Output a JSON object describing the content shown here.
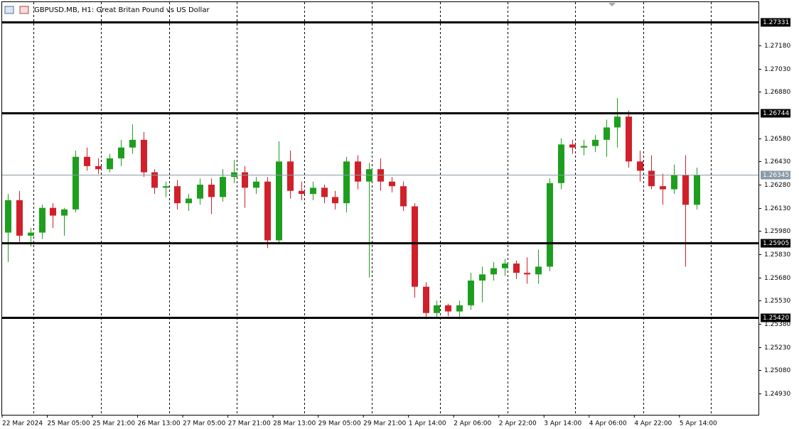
{
  "chart_data": {
    "type": "candlestick",
    "title": "GBPUSD.MB, H1:  Great Britan Pound vs US Dollar",
    "categories": [
      "22 Mar 2024",
      null,
      null,
      null,
      "25 Mar 05:00",
      null,
      null,
      null,
      "25 Mar 21:00",
      null,
      null,
      null,
      "26 Mar 13:00",
      null,
      null,
      null,
      "27 Mar 05:00",
      null,
      null,
      null,
      "27 Mar 21:00",
      null,
      null,
      null,
      "28 Mar 13:00",
      null,
      null,
      null,
      "29 Mar 05:00",
      null,
      null,
      null,
      "29 Mar 21:00",
      null,
      null,
      null,
      "1 Apr 14:00",
      null,
      null,
      null,
      "2 Apr 06:00",
      null,
      null,
      null,
      "2 Apr 22:00",
      null,
      null,
      null,
      "3 Apr 14:00",
      null,
      null,
      null,
      "4 Apr 06:00",
      null,
      null,
      null,
      "4 Apr 22:00",
      null,
      null,
      null,
      "5 Apr 14:00",
      null
    ],
    "open": [
      1.2597,
      1.2618,
      1.2595,
      1.2597,
      1.2613,
      1.2608,
      1.2612,
      1.2646,
      1.264,
      1.2638,
      1.2645,
      1.2652,
      1.2657,
      1.2636,
      1.2626,
      1.2627,
      1.2616,
      1.2619,
      1.2628,
      1.262,
      1.2633,
      1.2636,
      1.2626,
      1.263,
      1.2592,
      1.2643,
      1.2624,
      1.2622,
      1.2626,
      1.262,
      1.2616,
      1.2643,
      1.263,
      1.2638,
      1.263,
      1.2627,
      1.2614,
      1.2562,
      1.2545,
      1.255,
      1.2546,
      1.255,
      1.2566,
      1.257,
      1.2574,
      1.2577,
      1.2571,
      1.257,
      1.2575,
      1.2629,
      1.2654,
      1.2652,
      1.2653,
      1.2657,
      1.2665,
      1.2672,
      1.2643,
      1.2637,
      1.2627,
      1.2625,
      1.2634,
      1.2615
    ],
    "high": [
      1.2622,
      1.2624,
      1.26,
      1.2615,
      1.2616,
      1.2613,
      1.265,
      1.2652,
      1.2645,
      1.2648,
      1.2657,
      1.2667,
      1.2662,
      1.2638,
      1.263,
      1.2631,
      1.2622,
      1.2632,
      1.2632,
      1.2638,
      1.2644,
      1.264,
      1.2633,
      1.2633,
      1.2656,
      1.265,
      1.263,
      1.263,
      1.2628,
      1.2624,
      1.2646,
      1.2647,
      1.2642,
      1.2645,
      1.2633,
      1.263,
      1.2616,
      1.2565,
      1.2553,
      1.2551,
      1.2553,
      1.2571,
      1.2575,
      1.2578,
      1.258,
      1.2579,
      1.2581,
      1.2586,
      1.2632,
      1.2658,
      1.2657,
      1.2657,
      1.266,
      1.267,
      1.2684,
      1.2676,
      1.265,
      1.2647,
      1.2635,
      1.2641,
      1.2647,
      1.2639
    ],
    "low": [
      1.2578,
      1.2591,
      1.2588,
      1.2593,
      1.26,
      1.2595,
      1.261,
      1.2637,
      1.2635,
      1.2636,
      1.264,
      1.2648,
      1.2633,
      1.2622,
      1.262,
      1.2612,
      1.2611,
      1.2615,
      1.2609,
      1.2617,
      1.2629,
      1.2613,
      1.2622,
      1.2587,
      1.259,
      1.2619,
      1.2618,
      1.2618,
      1.2616,
      1.2612,
      1.261,
      1.2625,
      1.2568,
      1.2624,
      1.2623,
      1.2611,
      1.2555,
      1.2541,
      1.2542,
      1.2543,
      1.2541,
      1.2547,
      1.2552,
      1.2566,
      1.2569,
      1.2567,
      1.2564,
      1.2564,
      1.2572,
      1.2625,
      1.2648,
      1.2647,
      1.2649,
      1.2646,
      1.2652,
      1.2639,
      1.263,
      1.2625,
      1.2615,
      1.2622,
      1.2575,
      1.2612
    ],
    "close": [
      1.2618,
      1.2595,
      1.2597,
      1.2613,
      1.2608,
      1.2612,
      1.2646,
      1.264,
      1.2638,
      1.2645,
      1.2652,
      1.2657,
      1.2636,
      1.2626,
      1.2627,
      1.2616,
      1.2619,
      1.2628,
      1.262,
      1.2633,
      1.2636,
      1.2626,
      1.263,
      1.2592,
      1.2643,
      1.2624,
      1.2622,
      1.2626,
      1.262,
      1.2616,
      1.2643,
      1.263,
      1.2638,
      1.263,
      1.2627,
      1.2614,
      1.2562,
      1.2545,
      1.255,
      1.2546,
      1.255,
      1.2566,
      1.257,
      1.2574,
      1.2577,
      1.2571,
      1.257,
      1.2575,
      1.2629,
      1.2654,
      1.2652,
      1.2653,
      1.2657,
      1.2665,
      1.2672,
      1.2643,
      1.2637,
      1.2627,
      1.2625,
      1.2634,
      1.2615,
      1.2634
    ],
    "up_color": "#1e9e1e",
    "down_color": "#d0202a",
    "ylim": [
      1.24792,
      1.27474
    ],
    "yticks": [
      {
        "value": 1.2718,
        "label": "1.27180"
      },
      {
        "value": 1.2703,
        "label": "1.27030"
      },
      {
        "value": 1.2688,
        "label": "1.26880"
      },
      {
        "value": 1.2658,
        "label": "1.26580"
      },
      {
        "value": 1.2643,
        "label": "1.26430"
      },
      {
        "value": 1.2628,
        "label": "1.26280"
      },
      {
        "value": 1.2613,
        "label": "1.26130"
      },
      {
        "value": 1.2598,
        "label": "1.25980"
      },
      {
        "value": 1.2583,
        "label": "1.25830"
      },
      {
        "value": 1.2568,
        "label": "1.25680"
      },
      {
        "value": 1.2553,
        "label": "1.25530"
      },
      {
        "value": 1.2538,
        "label": "1.25380"
      },
      {
        "value": 1.2523,
        "label": "1.25230"
      },
      {
        "value": 1.2508,
        "label": "1.25080"
      },
      {
        "value": 1.2493,
        "label": "1.24930"
      }
    ],
    "levels": [
      1.27331,
      1.26744,
      1.25905,
      {
        "value": 1.2542,
        "label": "1.25420"
      }
    ],
    "current_price": 1.26345,
    "grid": true
  }
}
